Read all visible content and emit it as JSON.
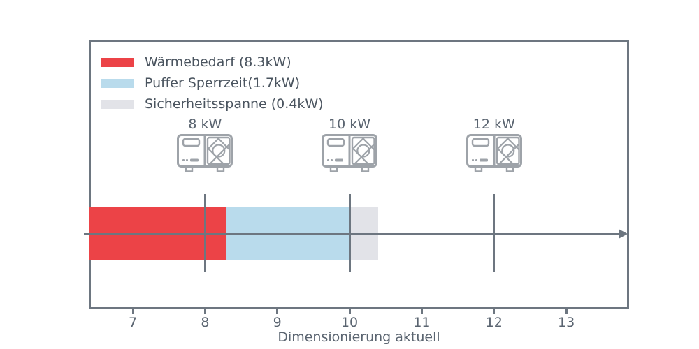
{
  "figure": {
    "background": "#ffffff",
    "line_color": "#6d7680",
    "legend_text_color": "#4a545f",
    "axis_text_color": "#5a6470",
    "icon_stroke_color": "#9ea3a9"
  },
  "chart_data": {
    "type": "bar",
    "orientation": "horizontal-stacked",
    "title": "",
    "xlabel": "Dimensionierung aktuell",
    "x_ticks": [
      7,
      8,
      9,
      10,
      11,
      12,
      13
    ],
    "xlim": [
      6.39,
      13.87
    ],
    "grid": false,
    "legend_position": "upper-left",
    "segments": [
      {
        "name": "Wärmebedarf (8.3kW)",
        "value_kw": 8.3,
        "from": 6.39,
        "to": 8.3,
        "color": "#ec4347"
      },
      {
        "name": "Puffer Sperrzeit(1.7kW)",
        "value_kw": 1.7,
        "from": 8.3,
        "to": 10.0,
        "color": "#b9dbec"
      },
      {
        "name": "Sicherheitsspanne (0.4kW)",
        "value_kw": 0.4,
        "from": 10.0,
        "to": 10.4,
        "color": "#e2e3e8"
      }
    ],
    "pump_markers": [
      {
        "label": "8 kW",
        "x": 8
      },
      {
        "label": "10 kW",
        "x": 10
      },
      {
        "label": "12 kW",
        "x": 12
      }
    ]
  }
}
